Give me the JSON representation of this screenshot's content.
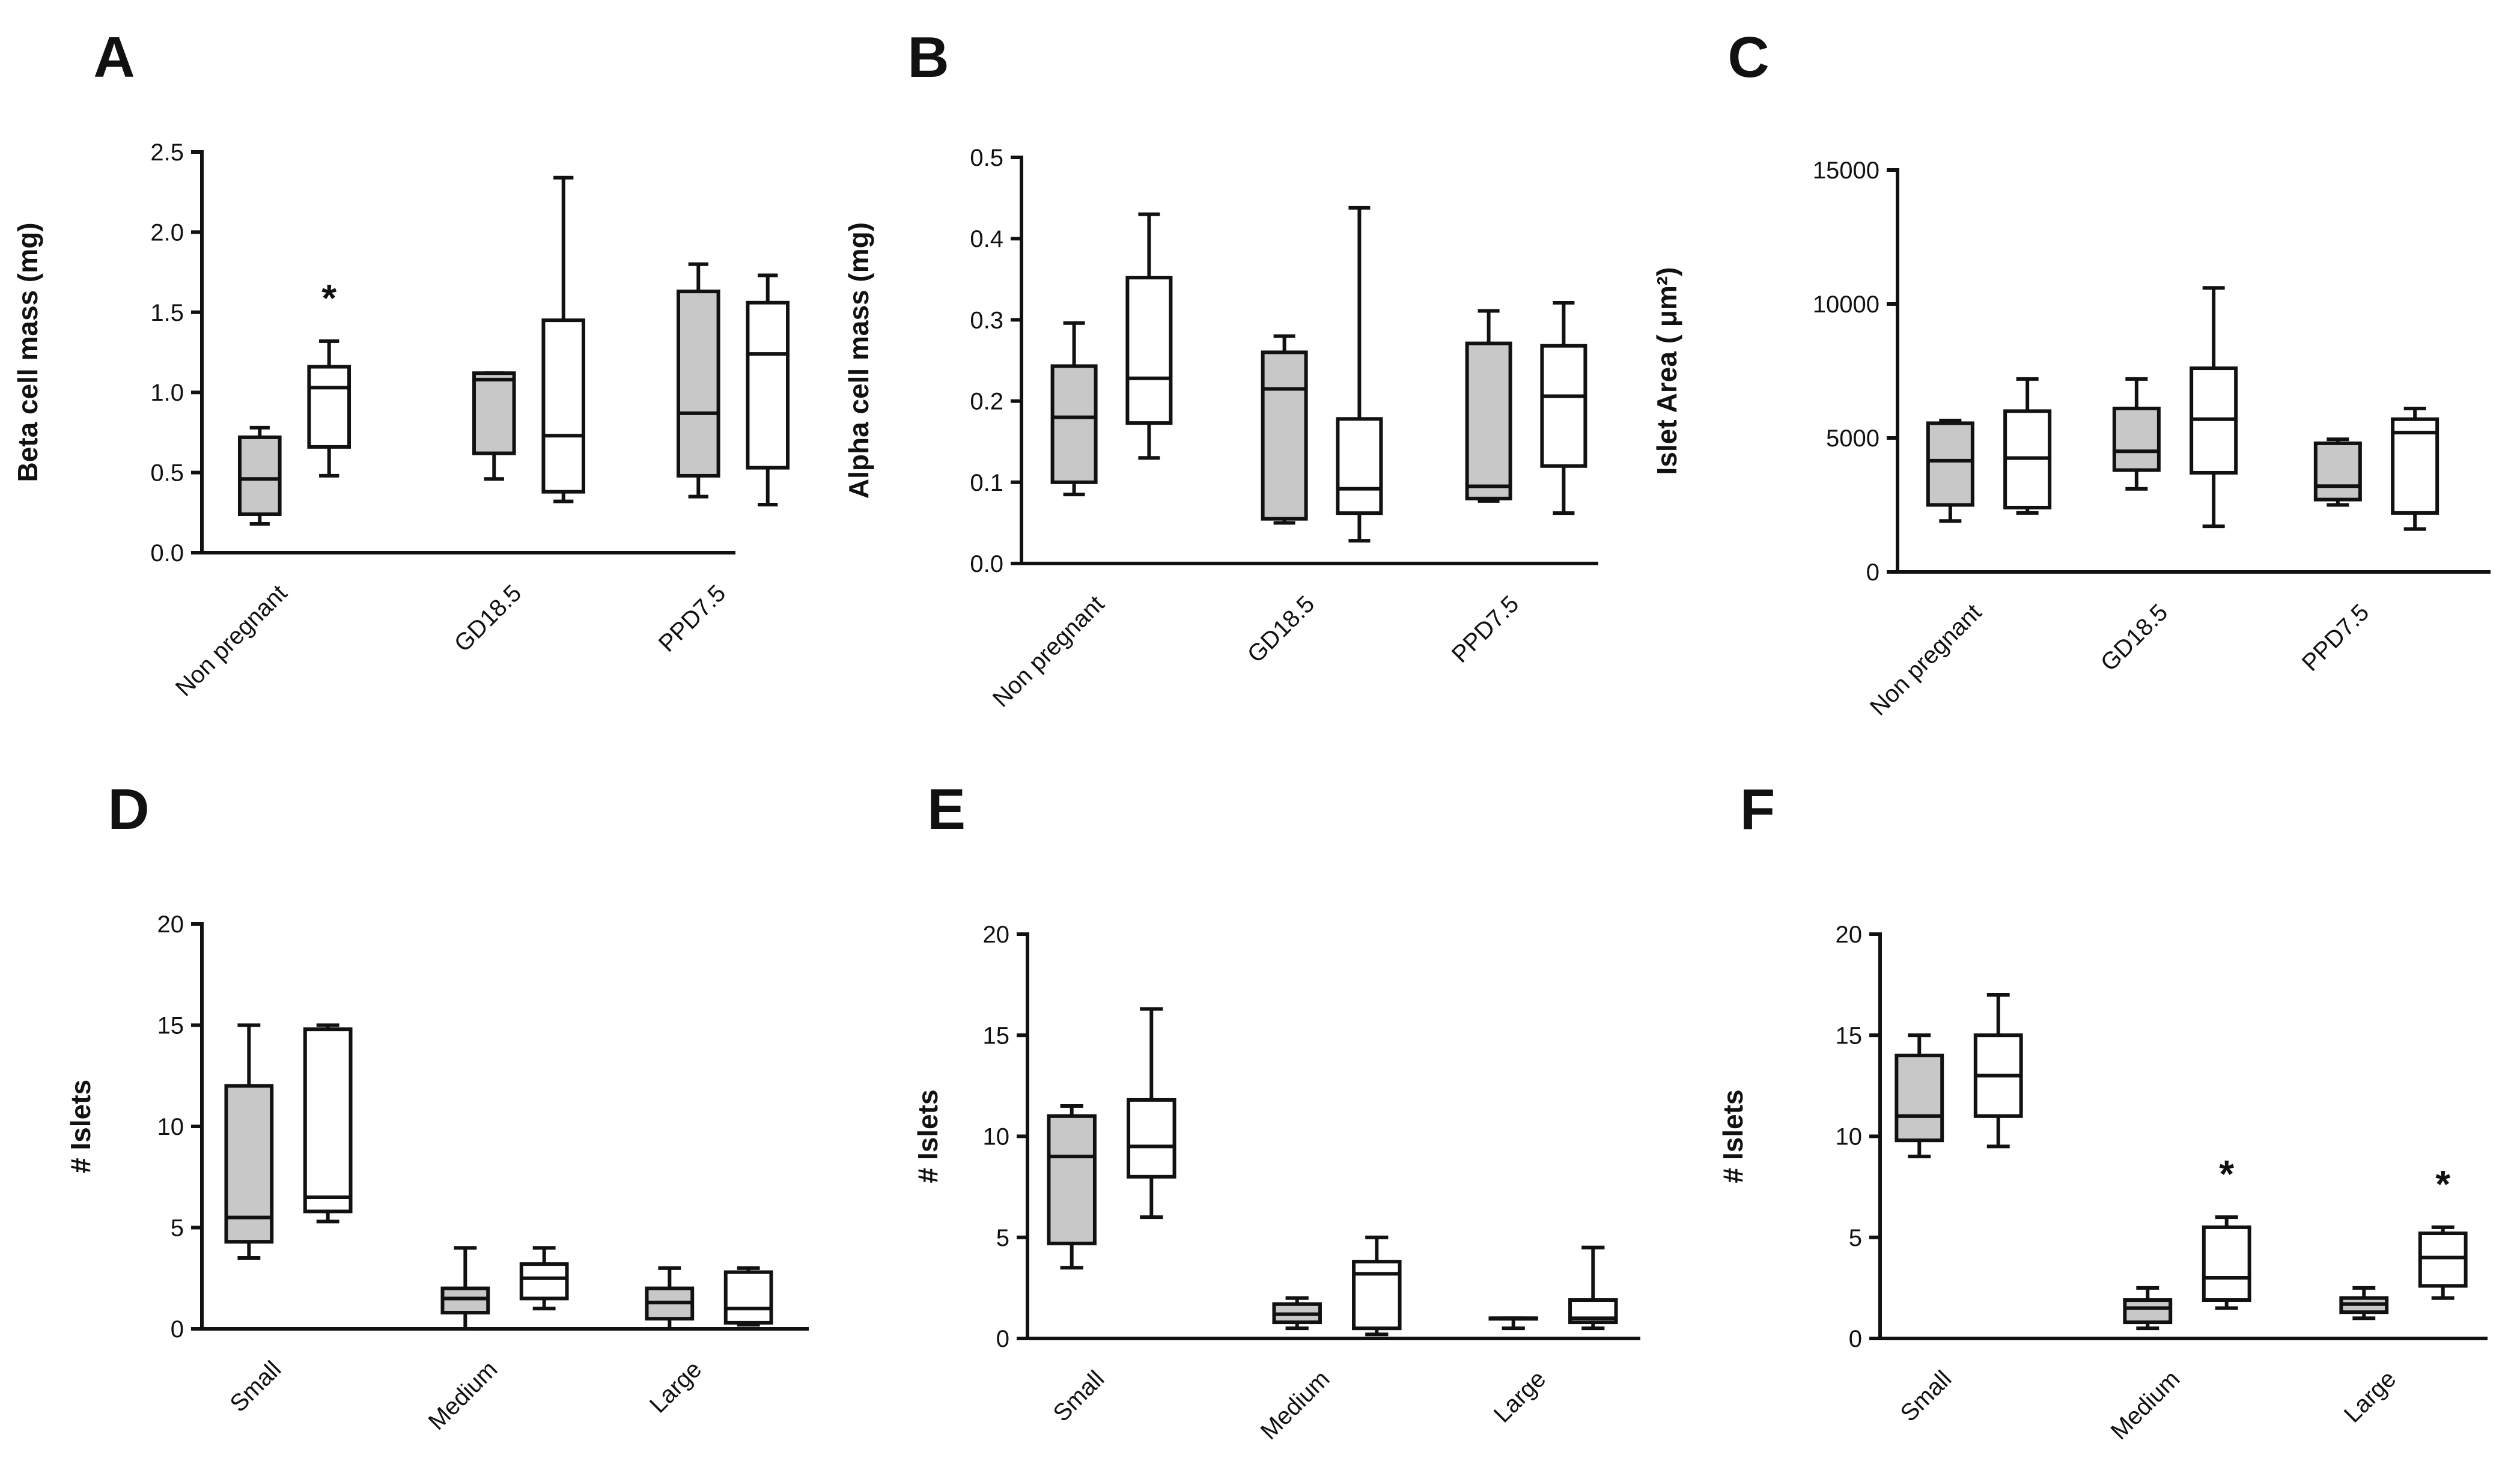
{
  "colors": {
    "group1_fill": "#c8c8c8",
    "group2_fill": "#ffffff",
    "line": "#111111"
  },
  "chart_data": [
    {
      "panel": "A",
      "type": "box",
      "ylabel": "Beta cell mass (mg)",
      "ylim": [
        0,
        2.5
      ],
      "yticks": [
        "0.0",
        "0.5",
        "1.0",
        "1.5",
        "2.0",
        "2.5"
      ],
      "ytick_values": [
        0,
        0.5,
        1,
        1.5,
        2,
        2.5
      ],
      "categories": [
        "Non pregnant",
        "GD18.5",
        "PPD7.5"
      ],
      "boxes": [
        {
          "cat": 0,
          "group": 1,
          "min": 0.18,
          "q1": 0.24,
          "median": 0.46,
          "q3": 0.72,
          "max": 0.78
        },
        {
          "cat": 0,
          "group": 2,
          "min": 0.48,
          "q1": 0.66,
          "median": 1.03,
          "q3": 1.16,
          "max": 1.32,
          "star": "*"
        },
        {
          "cat": 1,
          "group": 1,
          "min": 0.46,
          "q1": 0.62,
          "median": 1.08,
          "q3": 1.12,
          "max": 1.12
        },
        {
          "cat": 1,
          "group": 2,
          "min": 0.32,
          "q1": 0.38,
          "median": 0.73,
          "q3": 1.45,
          "max": 2.34
        },
        {
          "cat": 2,
          "group": 1,
          "min": 0.35,
          "q1": 0.48,
          "median": 0.87,
          "q3": 1.63,
          "max": 1.8
        },
        {
          "cat": 2,
          "group": 2,
          "min": 0.3,
          "q1": 0.53,
          "median": 1.24,
          "q3": 1.56,
          "max": 1.73
        }
      ]
    },
    {
      "panel": "B",
      "type": "box",
      "ylabel": "Alpha cell mass (mg)",
      "ylim": [
        0,
        0.5
      ],
      "yticks": [
        "0.0",
        "0.1",
        "0.2",
        "0.3",
        "0.4",
        "0.5"
      ],
      "ytick_values": [
        0,
        0.1,
        0.2,
        0.3,
        0.4,
        0.5
      ],
      "categories": [
        "Non pregnant",
        "GD18.5",
        "PPD7.5"
      ],
      "boxes": [
        {
          "cat": 0,
          "group": 1,
          "min": 0.085,
          "q1": 0.1,
          "median": 0.18,
          "q3": 0.243,
          "max": 0.296
        },
        {
          "cat": 0,
          "group": 2,
          "min": 0.13,
          "q1": 0.173,
          "median": 0.228,
          "q3": 0.352,
          "max": 0.43
        },
        {
          "cat": 1,
          "group": 1,
          "min": 0.05,
          "q1": 0.055,
          "median": 0.215,
          "q3": 0.26,
          "max": 0.28
        },
        {
          "cat": 1,
          "group": 2,
          "min": 0.028,
          "q1": 0.062,
          "median": 0.092,
          "q3": 0.178,
          "max": 0.438
        },
        {
          "cat": 2,
          "group": 1,
          "min": 0.077,
          "q1": 0.08,
          "median": 0.095,
          "q3": 0.271,
          "max": 0.311
        },
        {
          "cat": 2,
          "group": 2,
          "min": 0.062,
          "q1": 0.12,
          "median": 0.206,
          "q3": 0.268,
          "max": 0.321
        }
      ]
    },
    {
      "panel": "C",
      "type": "box",
      "ylabel": "Islet Area ( μm²)",
      "ylim": [
        0,
        15000
      ],
      "yticks": [
        "0",
        "5000",
        "10000",
        "15000"
      ],
      "ytick_values": [
        0,
        5000,
        10000,
        15000
      ],
      "categories": [
        "Non pregnant",
        "GD18.5",
        "PPD7.5"
      ],
      "boxes": [
        {
          "cat": 0,
          "group": 1,
          "min": 1900,
          "q1": 2500,
          "median": 4150,
          "q3": 5550,
          "max": 5650
        },
        {
          "cat": 0,
          "group": 2,
          "min": 2200,
          "q1": 2400,
          "median": 4250,
          "q3": 6000,
          "max": 7200
        },
        {
          "cat": 1,
          "group": 1,
          "min": 3100,
          "q1": 3800,
          "median": 4500,
          "q3": 6100,
          "max": 7200
        },
        {
          "cat": 1,
          "group": 2,
          "min": 1700,
          "q1": 3700,
          "median": 5700,
          "q3": 7600,
          "max": 10600
        },
        {
          "cat": 2,
          "group": 1,
          "min": 2500,
          "q1": 2700,
          "median": 3200,
          "q3": 4800,
          "max": 4950
        },
        {
          "cat": 2,
          "group": 2,
          "min": 1600,
          "q1": 2200,
          "median": 5200,
          "q3": 5700,
          "max": 6100
        }
      ]
    },
    {
      "panel": "D",
      "type": "box",
      "ylabel": "# Islets",
      "ylim": [
        0,
        20
      ],
      "yticks": [
        "0",
        "5",
        "10",
        "15",
        "20"
      ],
      "ytick_values": [
        0,
        5,
        10,
        15,
        20
      ],
      "categories": [
        "Small",
        "Medium",
        "Large"
      ],
      "boxes": [
        {
          "cat": 0,
          "group": 1,
          "min": 3.5,
          "q1": 4.3,
          "median": 5.5,
          "q3": 12,
          "max": 15
        },
        {
          "cat": 0,
          "group": 2,
          "min": 5.3,
          "q1": 5.8,
          "median": 6.5,
          "q3": 14.8,
          "max": 15
        },
        {
          "cat": 1,
          "group": 1,
          "min": 0,
          "q1": 0.8,
          "median": 1.5,
          "q3": 2,
          "max": 4
        },
        {
          "cat": 1,
          "group": 2,
          "min": 1,
          "q1": 1.5,
          "median": 2.5,
          "q3": 3.2,
          "max": 4
        },
        {
          "cat": 2,
          "group": 1,
          "min": 0,
          "q1": 0.5,
          "median": 1.3,
          "q3": 2,
          "max": 3
        },
        {
          "cat": 2,
          "group": 2,
          "min": 0.2,
          "q1": 0.3,
          "median": 1,
          "q3": 2.8,
          "max": 3
        }
      ]
    },
    {
      "panel": "E",
      "type": "box",
      "ylabel": "# Islets",
      "ylim": [
        0,
        20
      ],
      "yticks": [
        "0",
        "5",
        "10",
        "15",
        "20"
      ],
      "ytick_values": [
        0,
        5,
        10,
        15,
        20
      ],
      "categories": [
        "Small",
        "Medium",
        "Large"
      ],
      "boxes": [
        {
          "cat": 0,
          "group": 1,
          "min": 3.5,
          "q1": 4.7,
          "median": 9,
          "q3": 11,
          "max": 11.5
        },
        {
          "cat": 0,
          "group": 2,
          "min": 6,
          "q1": 8,
          "median": 9.5,
          "q3": 11.8,
          "max": 16.3
        },
        {
          "cat": 1,
          "group": 1,
          "min": 0.5,
          "q1": 0.8,
          "median": 1.2,
          "q3": 1.7,
          "max": 2
        },
        {
          "cat": 1,
          "group": 2,
          "min": 0.2,
          "q1": 0.5,
          "median": 3.2,
          "q3": 3.8,
          "max": 5
        },
        {
          "cat": 2,
          "group": 1,
          "min": 0.5,
          "q1": 1,
          "median": 1,
          "q3": 1,
          "max": 1
        },
        {
          "cat": 2,
          "group": 2,
          "min": 0.5,
          "q1": 0.8,
          "median": 1,
          "q3": 1.9,
          "max": 4.5
        }
      ]
    },
    {
      "panel": "F",
      "type": "box",
      "ylabel": "# Islets",
      "ylim": [
        0,
        20
      ],
      "yticks": [
        "0",
        "5",
        "10",
        "15",
        "20"
      ],
      "ytick_values": [
        0,
        5,
        10,
        15,
        20
      ],
      "categories": [
        "Small",
        "Medium",
        "Large"
      ],
      "boxes": [
        {
          "cat": 0,
          "group": 1,
          "min": 9,
          "q1": 9.8,
          "median": 11,
          "q3": 14,
          "max": 15
        },
        {
          "cat": 0,
          "group": 2,
          "min": 9.5,
          "q1": 11,
          "median": 13,
          "q3": 15,
          "max": 17
        },
        {
          "cat": 1,
          "group": 1,
          "min": 0.5,
          "q1": 0.8,
          "median": 1.5,
          "q3": 1.9,
          "max": 2.5
        },
        {
          "cat": 1,
          "group": 2,
          "min": 1.5,
          "q1": 1.9,
          "median": 3,
          "q3": 5.5,
          "max": 6,
          "star": "*"
        },
        {
          "cat": 2,
          "group": 1,
          "min": 1,
          "q1": 1.3,
          "median": 1.7,
          "q3": 2,
          "max": 2.5
        },
        {
          "cat": 2,
          "group": 2,
          "min": 2,
          "q1": 2.6,
          "median": 4,
          "q3": 5.2,
          "max": 5.5,
          "star": "*"
        }
      ]
    }
  ]
}
